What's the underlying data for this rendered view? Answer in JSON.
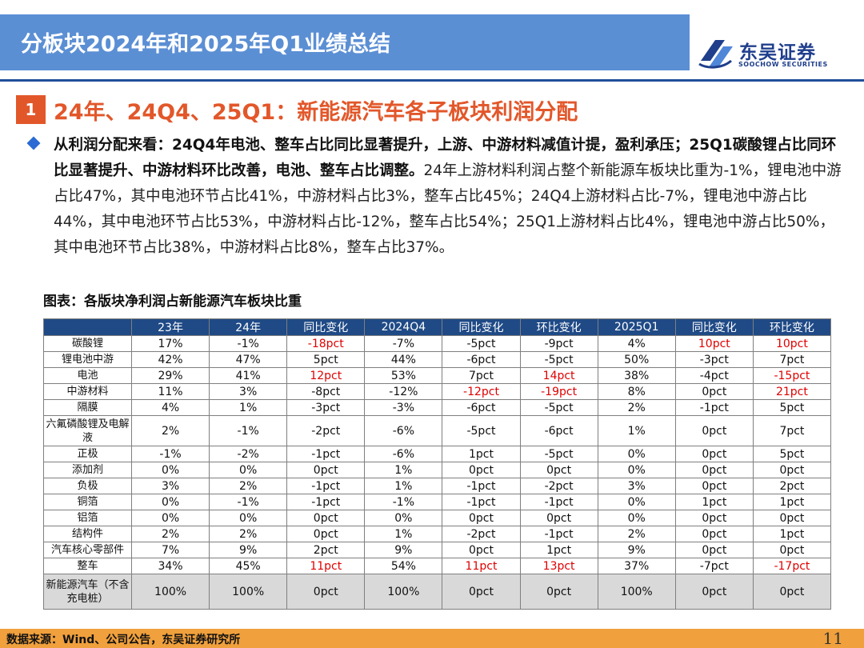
{
  "header": {
    "title": "分板块2024年和2025年Q1业绩总结",
    "logo_cn": "东吴证券",
    "logo_en": "SOOCHOW SECURITIES"
  },
  "section": {
    "number": "1",
    "title": "24年、24Q4、25Q1：新能源汽车各子板块利润分配"
  },
  "summary": {
    "bold": "从利润分配来看：24Q4年电池、整车占比同比显著提升，上游、中游材料减值计提，盈利承压；25Q1碳酸锂占比同环比显著提升、中游材料环比改善，电池、整车占比调整。",
    "body": "24年上游材料利润占整个新能源车板块比重为-1%，锂电池中游占比47%，其中电池环节占比41%，中游材料占比3%，整车占比45%；24Q4上游材料占比-7%，锂电池中游占比44%，其中电池环节占比53%，中游材料占比-12%，整车占比54%；25Q1上游材料占比4%，锂电池中游占比50%，其中电池环节占比38%，中游材料占比8%，整车占比37%。"
  },
  "figure": {
    "title": "图表：各版块净利润占新能源汽车板块比重"
  },
  "table": {
    "headers": [
      "",
      "23年",
      "24年",
      "同比变化",
      "2024Q4",
      "同比变化",
      "环比变化",
      "2025Q1",
      "同比变化",
      "环比变化"
    ],
    "rows": [
      [
        "碳酸锂",
        "17%",
        "-1%",
        "-18pct",
        "-7%",
        "-5pct",
        "-9pct",
        "4%",
        "10pct",
        "10pct"
      ],
      [
        "锂电池中游",
        "42%",
        "47%",
        "5pct",
        "44%",
        "-6pct",
        "-5pct",
        "50%",
        "-3pct",
        "7pct"
      ],
      [
        "电池",
        "29%",
        "41%",
        "12pct",
        "53%",
        "7pct",
        "14pct",
        "38%",
        "-4pct",
        "-15pct"
      ],
      [
        "中游材料",
        "11%",
        "3%",
        "-8pct",
        "-12%",
        "-12pct",
        "-19pct",
        "8%",
        "0pct",
        "21pct"
      ],
      [
        "隔膜",
        "4%",
        "1%",
        "-3pct",
        "-3%",
        "-6pct",
        "-5pct",
        "2%",
        "-1pct",
        "5pct"
      ],
      [
        "六氟磷酸锂及电解液",
        "2%",
        "-1%",
        "-2pct",
        "-6%",
        "-5pct",
        "-6pct",
        "1%",
        "0pct",
        "7pct"
      ],
      [
        "正极",
        "-1%",
        "-2%",
        "-1pct",
        "-6%",
        "1pct",
        "-5pct",
        "0%",
        "0pct",
        "5pct"
      ],
      [
        "添加剂",
        "0%",
        "0%",
        "0pct",
        "1%",
        "0pct",
        "0pct",
        "0%",
        "0pct",
        "0pct"
      ],
      [
        "负极",
        "3%",
        "2%",
        "-1pct",
        "1%",
        "-1pct",
        "-2pct",
        "3%",
        "0pct",
        "2pct"
      ],
      [
        "铜箔",
        "0%",
        "-1%",
        "-1pct",
        "-1%",
        "-1pct",
        "-1pct",
        "0%",
        "1pct",
        "1pct"
      ],
      [
        "铝箔",
        "0%",
        "0%",
        "0pct",
        "0%",
        "0pct",
        "0pct",
        "0%",
        "0pct",
        "0pct"
      ],
      [
        "结构件",
        "2%",
        "2%",
        "0pct",
        "1%",
        "-2pct",
        "-1pct",
        "2%",
        "0pct",
        "1pct"
      ],
      [
        "汽车核心零部件",
        "7%",
        "9%",
        "2pct",
        "9%",
        "0pct",
        "1pct",
        "9%",
        "0pct",
        "0pct"
      ],
      [
        "整车",
        "34%",
        "45%",
        "11pct",
        "54%",
        "11pct",
        "13pct",
        "37%",
        "-7pct",
        "-17pct"
      ],
      [
        "新能源汽车（不含充电桩）",
        "100%",
        "100%",
        "0pct",
        "100%",
        "0pct",
        "0pct",
        "100%",
        "0pct",
        "0pct"
      ]
    ],
    "highlight_color": "#e00000",
    "highlighted_cells": [
      [
        0,
        3
      ],
      [
        0,
        8
      ],
      [
        0,
        9
      ],
      [
        2,
        3
      ],
      [
        2,
        6
      ],
      [
        2,
        9
      ],
      [
        3,
        5
      ],
      [
        3,
        6
      ],
      [
        3,
        9
      ],
      [
        13,
        3
      ],
      [
        13,
        5
      ],
      [
        13,
        6
      ],
      [
        13,
        9
      ]
    ]
  },
  "footer": {
    "source": "数据来源：Wind、公司公告，东吴证券研究所",
    "page": "11"
  },
  "colors": {
    "header_bar": "#5b8fd4",
    "header_line": "#1f4e99",
    "accent": "#e2572a",
    "table_header": "#1f4a86",
    "footer_bar": "#f0a03c"
  }
}
